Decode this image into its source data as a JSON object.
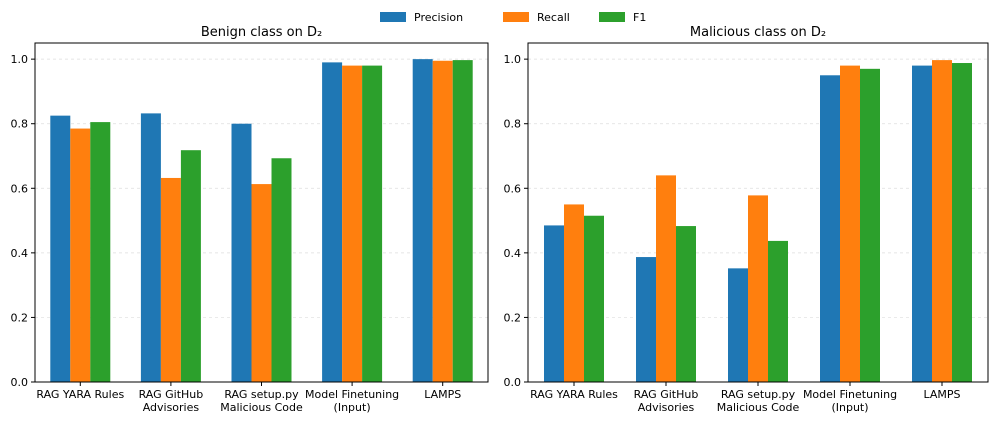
{
  "legend_position": "top",
  "chart_data": [
    {
      "type": "bar",
      "title": "Benign class on D₂",
      "categories": [
        "RAG YARA Rules",
        "RAG GitHub\nAdvisories",
        "RAG setup.py\nMalicious Code",
        "Model Finetuning\n(Input)",
        "LAMPS"
      ],
      "series": [
        {
          "name": "Precision",
          "color": "#1f77b4",
          "values": [
            0.825,
            0.832,
            0.8,
            0.99,
            1.0
          ]
        },
        {
          "name": "Recall",
          "color": "#ff7f0e",
          "values": [
            0.785,
            0.632,
            0.613,
            0.98,
            0.995
          ]
        },
        {
          "name": "F1",
          "color": "#2ca02c",
          "values": [
            0.805,
            0.718,
            0.693,
            0.98,
            0.997
          ]
        }
      ],
      "ylim": [
        0,
        1.05
      ],
      "yticks": [
        {
          "value": 0,
          "label": "0.0"
        },
        {
          "value": 0.2,
          "label": "0.2"
        },
        {
          "value": 0.4,
          "label": "0.4"
        },
        {
          "value": 0.6,
          "label": "0.6"
        },
        {
          "value": 0.8,
          "label": "0.8"
        },
        {
          "value": 1.0,
          "label": "1.0"
        }
      ],
      "grid": true
    },
    {
      "type": "bar",
      "title": "Malicious class on D₂",
      "categories": [
        "RAG YARA Rules",
        "RAG GitHub\nAdvisories",
        "RAG setup.py\nMalicious Code",
        "Model Finetuning\n(Input)",
        "LAMPS"
      ],
      "series": [
        {
          "name": "Precision",
          "color": "#1f77b4",
          "values": [
            0.485,
            0.387,
            0.352,
            0.95,
            0.98
          ]
        },
        {
          "name": "Recall",
          "color": "#ff7f0e",
          "values": [
            0.55,
            0.64,
            0.578,
            0.98,
            0.997
          ]
        },
        {
          "name": "F1",
          "color": "#2ca02c",
          "values": [
            0.515,
            0.483,
            0.437,
            0.97,
            0.988
          ]
        }
      ],
      "ylim": [
        0,
        1.05
      ],
      "yticks": [
        {
          "value": 0,
          "label": "0.0"
        },
        {
          "value": 0.2,
          "label": "0.2"
        },
        {
          "value": 0.4,
          "label": "0.4"
        },
        {
          "value": 0.6,
          "label": "0.6"
        },
        {
          "value": 0.8,
          "label": "0.8"
        },
        {
          "value": 1.0,
          "label": "1.0"
        }
      ],
      "grid": true
    }
  ]
}
